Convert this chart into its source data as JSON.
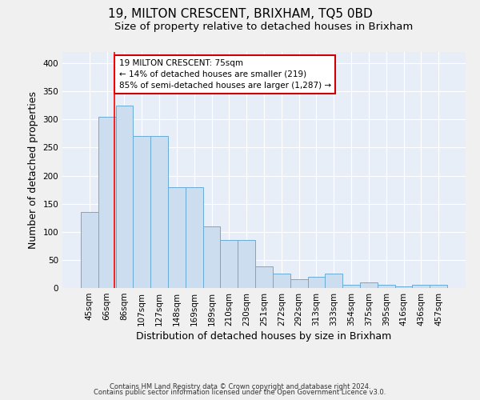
{
  "title1": "19, MILTON CRESCENT, BRIXHAM, TQ5 0BD",
  "title2": "Size of property relative to detached houses in Brixham",
  "xlabel": "Distribution of detached houses by size in Brixham",
  "ylabel": "Number of detached properties",
  "categories": [
    "45sqm",
    "66sqm",
    "86sqm",
    "107sqm",
    "127sqm",
    "148sqm",
    "169sqm",
    "189sqm",
    "210sqm",
    "230sqm",
    "251sqm",
    "272sqm",
    "292sqm",
    "313sqm",
    "333sqm",
    "354sqm",
    "375sqm",
    "395sqm",
    "416sqm",
    "436sqm",
    "457sqm"
  ],
  "values": [
    135,
    305,
    325,
    270,
    270,
    180,
    180,
    110,
    85,
    85,
    38,
    25,
    15,
    20,
    25,
    5,
    10,
    5,
    3,
    5,
    5
  ],
  "bar_color": "#ccddf0",
  "bar_edge_color": "#6aabd6",
  "bar_width": 1.0,
  "red_line_x": 1.45,
  "annotation_text": "19 MILTON CRESCENT: 75sqm\n← 14% of detached houses are smaller (219)\n85% of semi-detached houses are larger (1,287) →",
  "annotation_box_color": "#ffffff",
  "annotation_box_edge": "#cc0000",
  "ylim": [
    0,
    420
  ],
  "yticks": [
    0,
    50,
    100,
    150,
    200,
    250,
    300,
    350,
    400
  ],
  "footer1": "Contains HM Land Registry data © Crown copyright and database right 2024.",
  "footer2": "Contains public sector information licensed under the Open Government Licence v3.0.",
  "title1_fontsize": 11,
  "title2_fontsize": 9.5,
  "tick_fontsize": 7.5,
  "ylabel_fontsize": 9,
  "xlabel_fontsize": 9,
  "footer_fontsize": 6,
  "background_color": "#e8eef8",
  "grid_color": "#ffffff",
  "fig_bg": "#f0f0f0"
}
